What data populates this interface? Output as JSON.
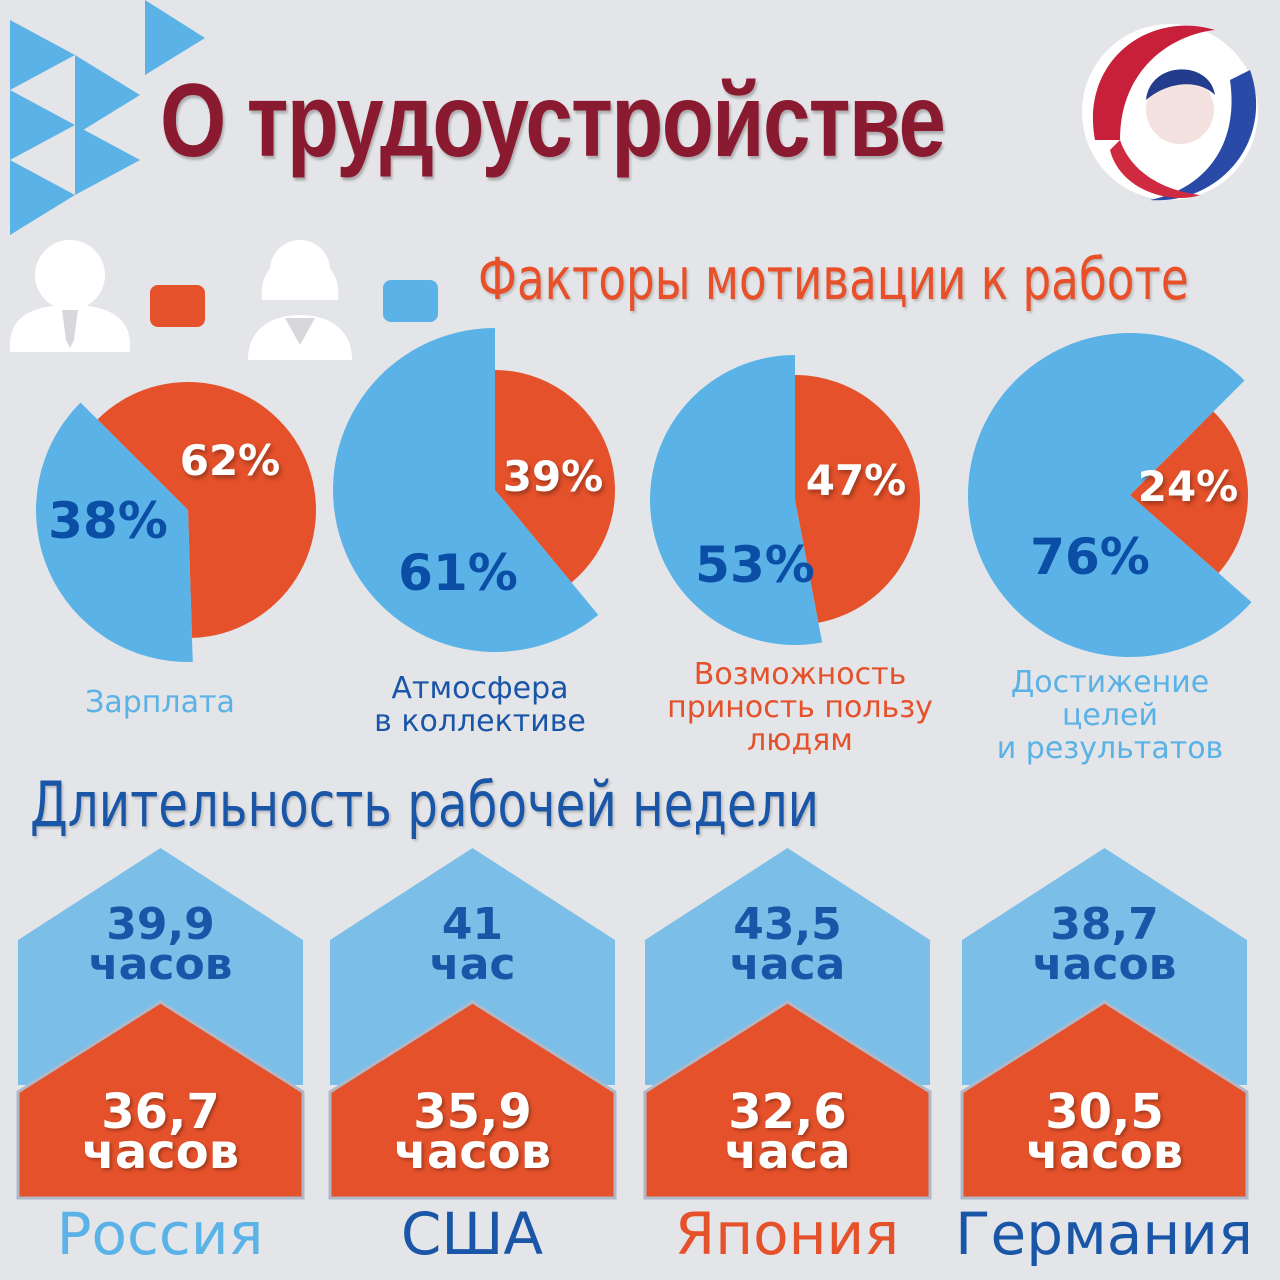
{
  "header": {
    "title": "О трудоустройстве",
    "logo": "woman-profile-logo"
  },
  "colors": {
    "men": "#e4512a",
    "women": "#5ab2e6",
    "title": "#8a1a30",
    "dark_blue": "#1a56a8",
    "light_blue": "#5ab2e6"
  },
  "legend": [
    {
      "icon": "man-icon",
      "color": "#e4512a"
    },
    {
      "icon": "woman-icon",
      "color": "#5ab2e6"
    }
  ],
  "chart_data": [
    {
      "type": "pie",
      "title": "Факторы мотивации к работе",
      "categories": [
        "Зарплата",
        "Атмосфера в коллективе",
        "Возможность приносить пользу людям",
        "Достижение целей и результатов"
      ],
      "pies": [
        {
          "label": [
            "Зарплата"
          ],
          "label_color": "#5ab2e6",
          "men": 62,
          "women": 38,
          "men_label": "62%",
          "women_label": "38%"
        },
        {
          "label": [
            "Атмосфера",
            "в коллективе"
          ],
          "label_color": "#1a56a8",
          "men": 39,
          "women": 61,
          "men_label": "39%",
          "women_label": "61%"
        },
        {
          "label": [
            "Возможность",
            "приность пользу",
            "людям"
          ],
          "label_color": "#e4512a",
          "men": 47,
          "women": 53,
          "men_label": "47%",
          "women_label": "53%"
        },
        {
          "label": [
            "Достижение целей",
            "и результатов"
          ],
          "label_color": "#5ab2e6",
          "men": 24,
          "women": 76,
          "men_label": "24%",
          "women_label": "76%"
        }
      ]
    },
    {
      "type": "bar",
      "title": "Длительность рабочей недели",
      "categories": [
        "Россия",
        "США",
        "Япония",
        "Германия"
      ],
      "category_colors": [
        "#5ab2e6",
        "#1a56a8",
        "#e4512a",
        "#1a56a8"
      ],
      "series": [
        {
          "color": "#7bbfe8",
          "values": [
            39.9,
            41,
            43.5,
            38.7
          ],
          "labels": [
            [
              "39,9",
              "часов"
            ],
            [
              "41",
              "час"
            ],
            [
              "43,5",
              "часа"
            ],
            [
              "38,7",
              "часов"
            ]
          ]
        },
        {
          "color": "#e4512a",
          "values": [
            36.7,
            35.9,
            32.6,
            30.5
          ],
          "labels": [
            [
              "36,7",
              "часов"
            ],
            [
              "35,9",
              "часов"
            ],
            [
              "32,6",
              "часа"
            ],
            [
              "30,5",
              "часов"
            ]
          ]
        }
      ]
    }
  ]
}
